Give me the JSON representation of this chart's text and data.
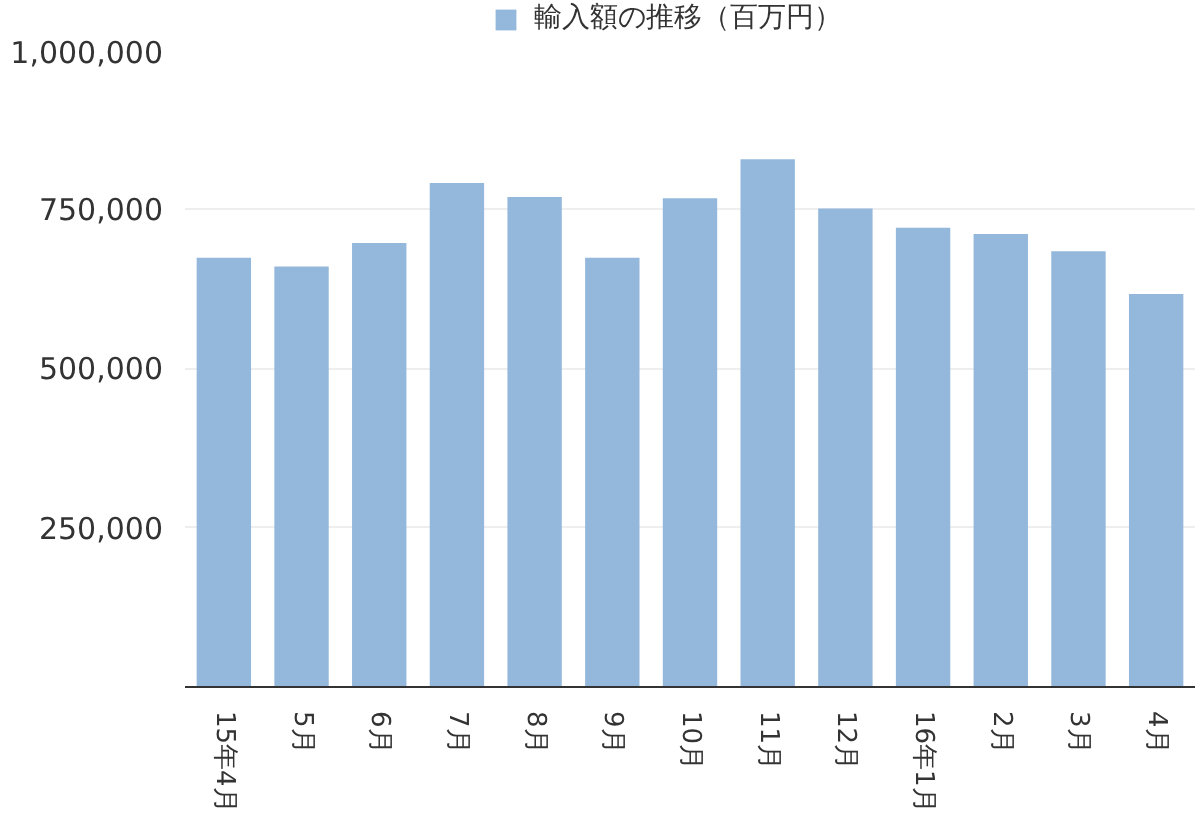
{
  "chart_data": {
    "type": "bar",
    "categories": [
      "15年4月",
      "5月",
      "6月",
      "7月",
      "8月",
      "9月",
      "10月",
      "11月",
      "12月",
      "16年1月",
      "2月",
      "3月",
      "4月"
    ],
    "series": [
      {
        "name": "輸入額の推移（百万円）",
        "color": "#94b8dc",
        "values": [
          673000,
          659000,
          696000,
          790000,
          768000,
          673000,
          766000,
          827000,
          750000,
          720000,
          710000,
          683000,
          616000
        ]
      }
    ],
    "ylim": [
      0,
      1000000
    ],
    "yticks": [
      {
        "value": 250000,
        "label": "250,000"
      },
      {
        "value": 500000,
        "label": "500,000"
      },
      {
        "value": 750000,
        "label": "750,000"
      },
      {
        "value": 1000000,
        "label": "1,000,000"
      }
    ],
    "grid": "y",
    "legend": "top"
  }
}
